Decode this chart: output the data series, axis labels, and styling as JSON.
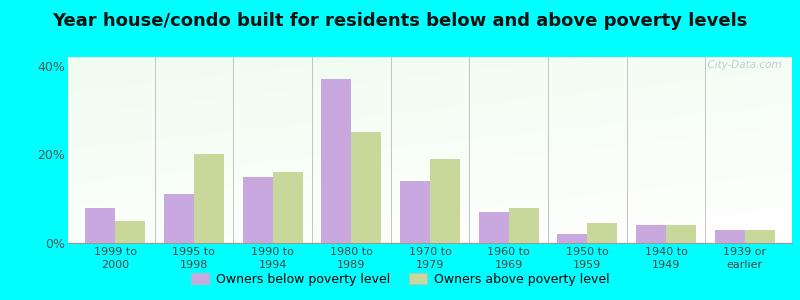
{
  "categories": [
    "1999 to\n2000",
    "1995 to\n1998",
    "1990 to\n1994",
    "1980 to\n1989",
    "1970 to\n1979",
    "1960 to\n1969",
    "1950 to\n1959",
    "1940 to\n1949",
    "1939 or\nearlier"
  ],
  "below_poverty": [
    8.0,
    11.0,
    15.0,
    37.0,
    14.0,
    7.0,
    2.0,
    4.0,
    3.0
  ],
  "above_poverty": [
    5.0,
    20.0,
    16.0,
    25.0,
    19.0,
    8.0,
    4.5,
    4.0,
    3.0
  ],
  "below_color": "#c9a8e0",
  "above_color": "#c8d89a",
  "title": "Year house/condo built for residents below and above poverty levels",
  "title_fontsize": 13,
  "ylim": [
    0,
    42
  ],
  "yticks": [
    0,
    20,
    40
  ],
  "ytick_labels": [
    "0%",
    "20%",
    "40%"
  ],
  "legend_below": "Owners below poverty level",
  "legend_above": "Owners above poverty level",
  "cyan_border": "#00ffff",
  "bar_width": 0.38
}
